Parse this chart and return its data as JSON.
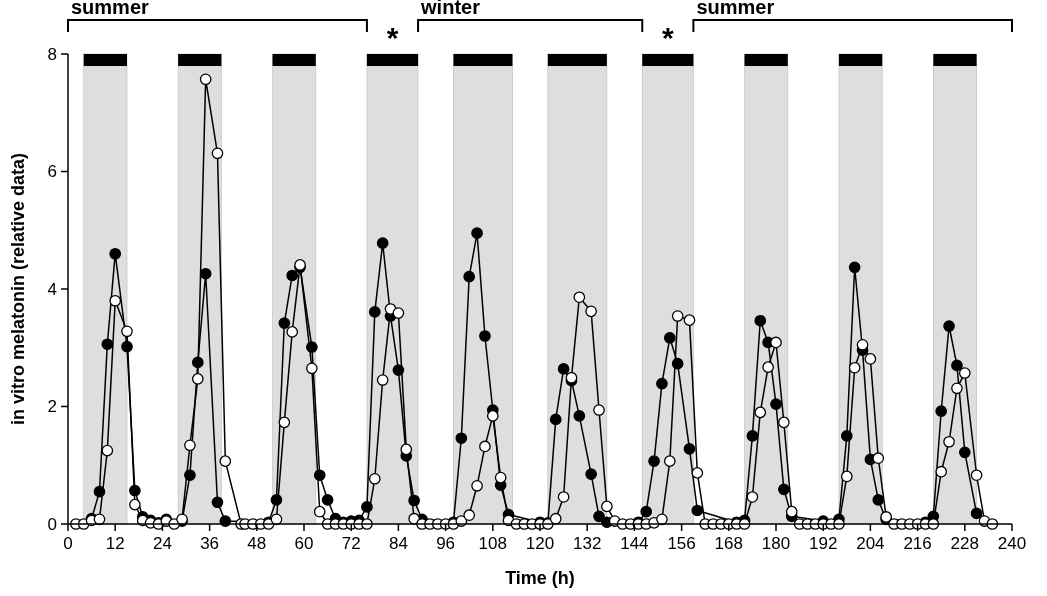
{
  "chart_data": {
    "type": "line",
    "xlabel": "Time (h)",
    "ylabel": "in vitro melatonin (relative data)",
    "xlim": [
      0,
      240
    ],
    "xticks": [
      0,
      12,
      24,
      36,
      48,
      60,
      72,
      84,
      96,
      108,
      120,
      132,
      144,
      156,
      168,
      180,
      192,
      204,
      216,
      228,
      240
    ],
    "ylim": [
      0,
      8
    ],
    "yticks": [
      0,
      2,
      4,
      6,
      8
    ],
    "grid": false,
    "marker": "circle",
    "line_style": "solid",
    "series": [
      {
        "color": "#000000",
        "x": [
          6,
          8,
          10,
          12,
          15,
          17,
          19,
          21,
          23,
          25,
          29,
          31,
          33,
          35,
          38,
          40,
          51,
          53,
          55,
          57,
          59,
          62,
          64,
          66,
          68,
          70,
          72,
          74,
          76,
          78,
          80,
          82,
          84,
          86,
          88,
          90,
          98,
          100,
          102,
          104,
          106,
          108,
          110,
          112,
          120,
          122,
          124,
          126,
          128,
          130,
          133,
          135,
          137,
          145,
          147,
          149,
          151,
          153,
          155,
          158,
          160,
          170,
          172,
          174,
          176,
          178,
          180,
          182,
          184,
          192,
          196,
          198,
          200,
          202,
          204,
          206,
          208,
          218,
          220,
          222,
          224,
          226,
          228,
          231
        ],
        "values": [
          0.09,
          0.55,
          3.06,
          4.6,
          3.02,
          0.57,
          0.12,
          0.06,
          0.02,
          0.08,
          0.05,
          0.83,
          2.75,
          4.26,
          0.37,
          0.05,
          0.03,
          0.41,
          3.42,
          4.23,
          4.37,
          3.01,
          0.83,
          0.41,
          0.09,
          0.03,
          0.05,
          0.06,
          0.29,
          3.61,
          4.78,
          3.54,
          2.62,
          1.16,
          0.4,
          0.08,
          0.03,
          1.46,
          4.21,
          4.95,
          3.2,
          1.94,
          0.66,
          0.16,
          0.03,
          0.02,
          1.78,
          2.64,
          2.44,
          1.84,
          0.85,
          0.13,
          0.03,
          0.03,
          0.21,
          1.07,
          2.39,
          3.17,
          2.73,
          1.28,
          0.23,
          0.03,
          0.06,
          1.5,
          3.46,
          3.09,
          2.04,
          0.59,
          0.13,
          0.05,
          0.08,
          1.5,
          4.37,
          2.96,
          1.1,
          0.41,
          0.08,
          0.03,
          0.13,
          1.92,
          3.37,
          2.7,
          1.22,
          0.18
        ]
      },
      {
        "color": "#ffffff",
        "x": [
          2,
          4,
          6,
          8,
          10,
          12,
          15,
          17,
          19,
          21,
          23,
          25,
          27,
          29,
          31,
          33,
          35,
          38,
          40,
          44,
          45,
          47,
          49,
          51,
          53,
          55,
          57,
          59,
          62,
          64,
          66,
          68,
          70,
          72,
          74,
          76,
          78,
          80,
          82,
          84,
          86,
          88,
          90,
          92,
          94,
          96,
          98,
          100,
          102,
          104,
          106,
          108,
          110,
          112,
          114,
          116,
          118,
          120,
          122,
          124,
          126,
          128,
          130,
          133,
          135,
          137,
          139,
          141,
          143,
          145,
          147,
          149,
          151,
          153,
          155,
          158,
          160,
          162,
          164,
          166,
          168,
          170,
          172,
          174,
          176,
          178,
          180,
          182,
          184,
          186,
          188,
          190,
          192,
          194,
          196,
          198,
          200,
          202,
          204,
          206,
          208,
          210,
          212,
          214,
          216,
          218,
          220,
          222,
          224,
          226,
          228,
          231,
          233,
          235
        ],
        "values": [
          0,
          0,
          0.06,
          0.08,
          1.25,
          3.8,
          3.28,
          0.33,
          0.06,
          0.02,
          0,
          0.05,
          0,
          0.08,
          1.34,
          2.47,
          7.57,
          6.31,
          1.07,
          0,
          0,
          0,
          0,
          0,
          0.08,
          1.73,
          3.27,
          4.41,
          2.65,
          0.21,
          0,
          0,
          0,
          0,
          0,
          0,
          0.77,
          2.45,
          3.66,
          3.59,
          1.27,
          0.09,
          0,
          0,
          0,
          0,
          0,
          0.05,
          0.15,
          0.65,
          1.32,
          1.84,
          0.79,
          0.06,
          0,
          0,
          0,
          0,
          0,
          0.09,
          0.46,
          2.49,
          3.86,
          3.62,
          1.94,
          0.3,
          0.05,
          0,
          0,
          0,
          0,
          0.02,
          0.08,
          1.07,
          3.54,
          3.47,
          0.87,
          0,
          0,
          0,
          0,
          0,
          0,
          0.46,
          1.9,
          2.67,
          3.09,
          1.73,
          0.21,
          0,
          0,
          0,
          0,
          0,
          0,
          0.81,
          2.66,
          3.05,
          2.81,
          1.12,
          0.12,
          0,
          0,
          0,
          0,
          0,
          0,
          0.89,
          1.4,
          2.31,
          2.57,
          0.83,
          0.05,
          0
        ]
      }
    ],
    "bands": [
      {
        "axis": "x",
        "from": 4,
        "to": 15,
        "color": "#dedede"
      },
      {
        "axis": "x",
        "from": 28,
        "to": 39,
        "color": "#dedede"
      },
      {
        "axis": "x",
        "from": 52,
        "to": 63,
        "color": "#dedede"
      },
      {
        "axis": "x",
        "from": 76,
        "to": 89,
        "color": "#dedede",
        "label": "*"
      },
      {
        "axis": "x",
        "from": 98,
        "to": 113,
        "color": "#dedede"
      },
      {
        "axis": "x",
        "from": 122,
        "to": 137,
        "color": "#dedede"
      },
      {
        "axis": "x",
        "from": 146,
        "to": 159,
        "color": "#dedede",
        "label": "*"
      },
      {
        "axis": "x",
        "from": 172,
        "to": 183,
        "color": "#dedede"
      },
      {
        "axis": "x",
        "from": 196,
        "to": 207,
        "color": "#dedede"
      },
      {
        "axis": "x",
        "from": 220,
        "to": 231,
        "color": "#dedede"
      }
    ],
    "annotations": [
      "summer",
      "winter",
      "summer"
    ]
  }
}
